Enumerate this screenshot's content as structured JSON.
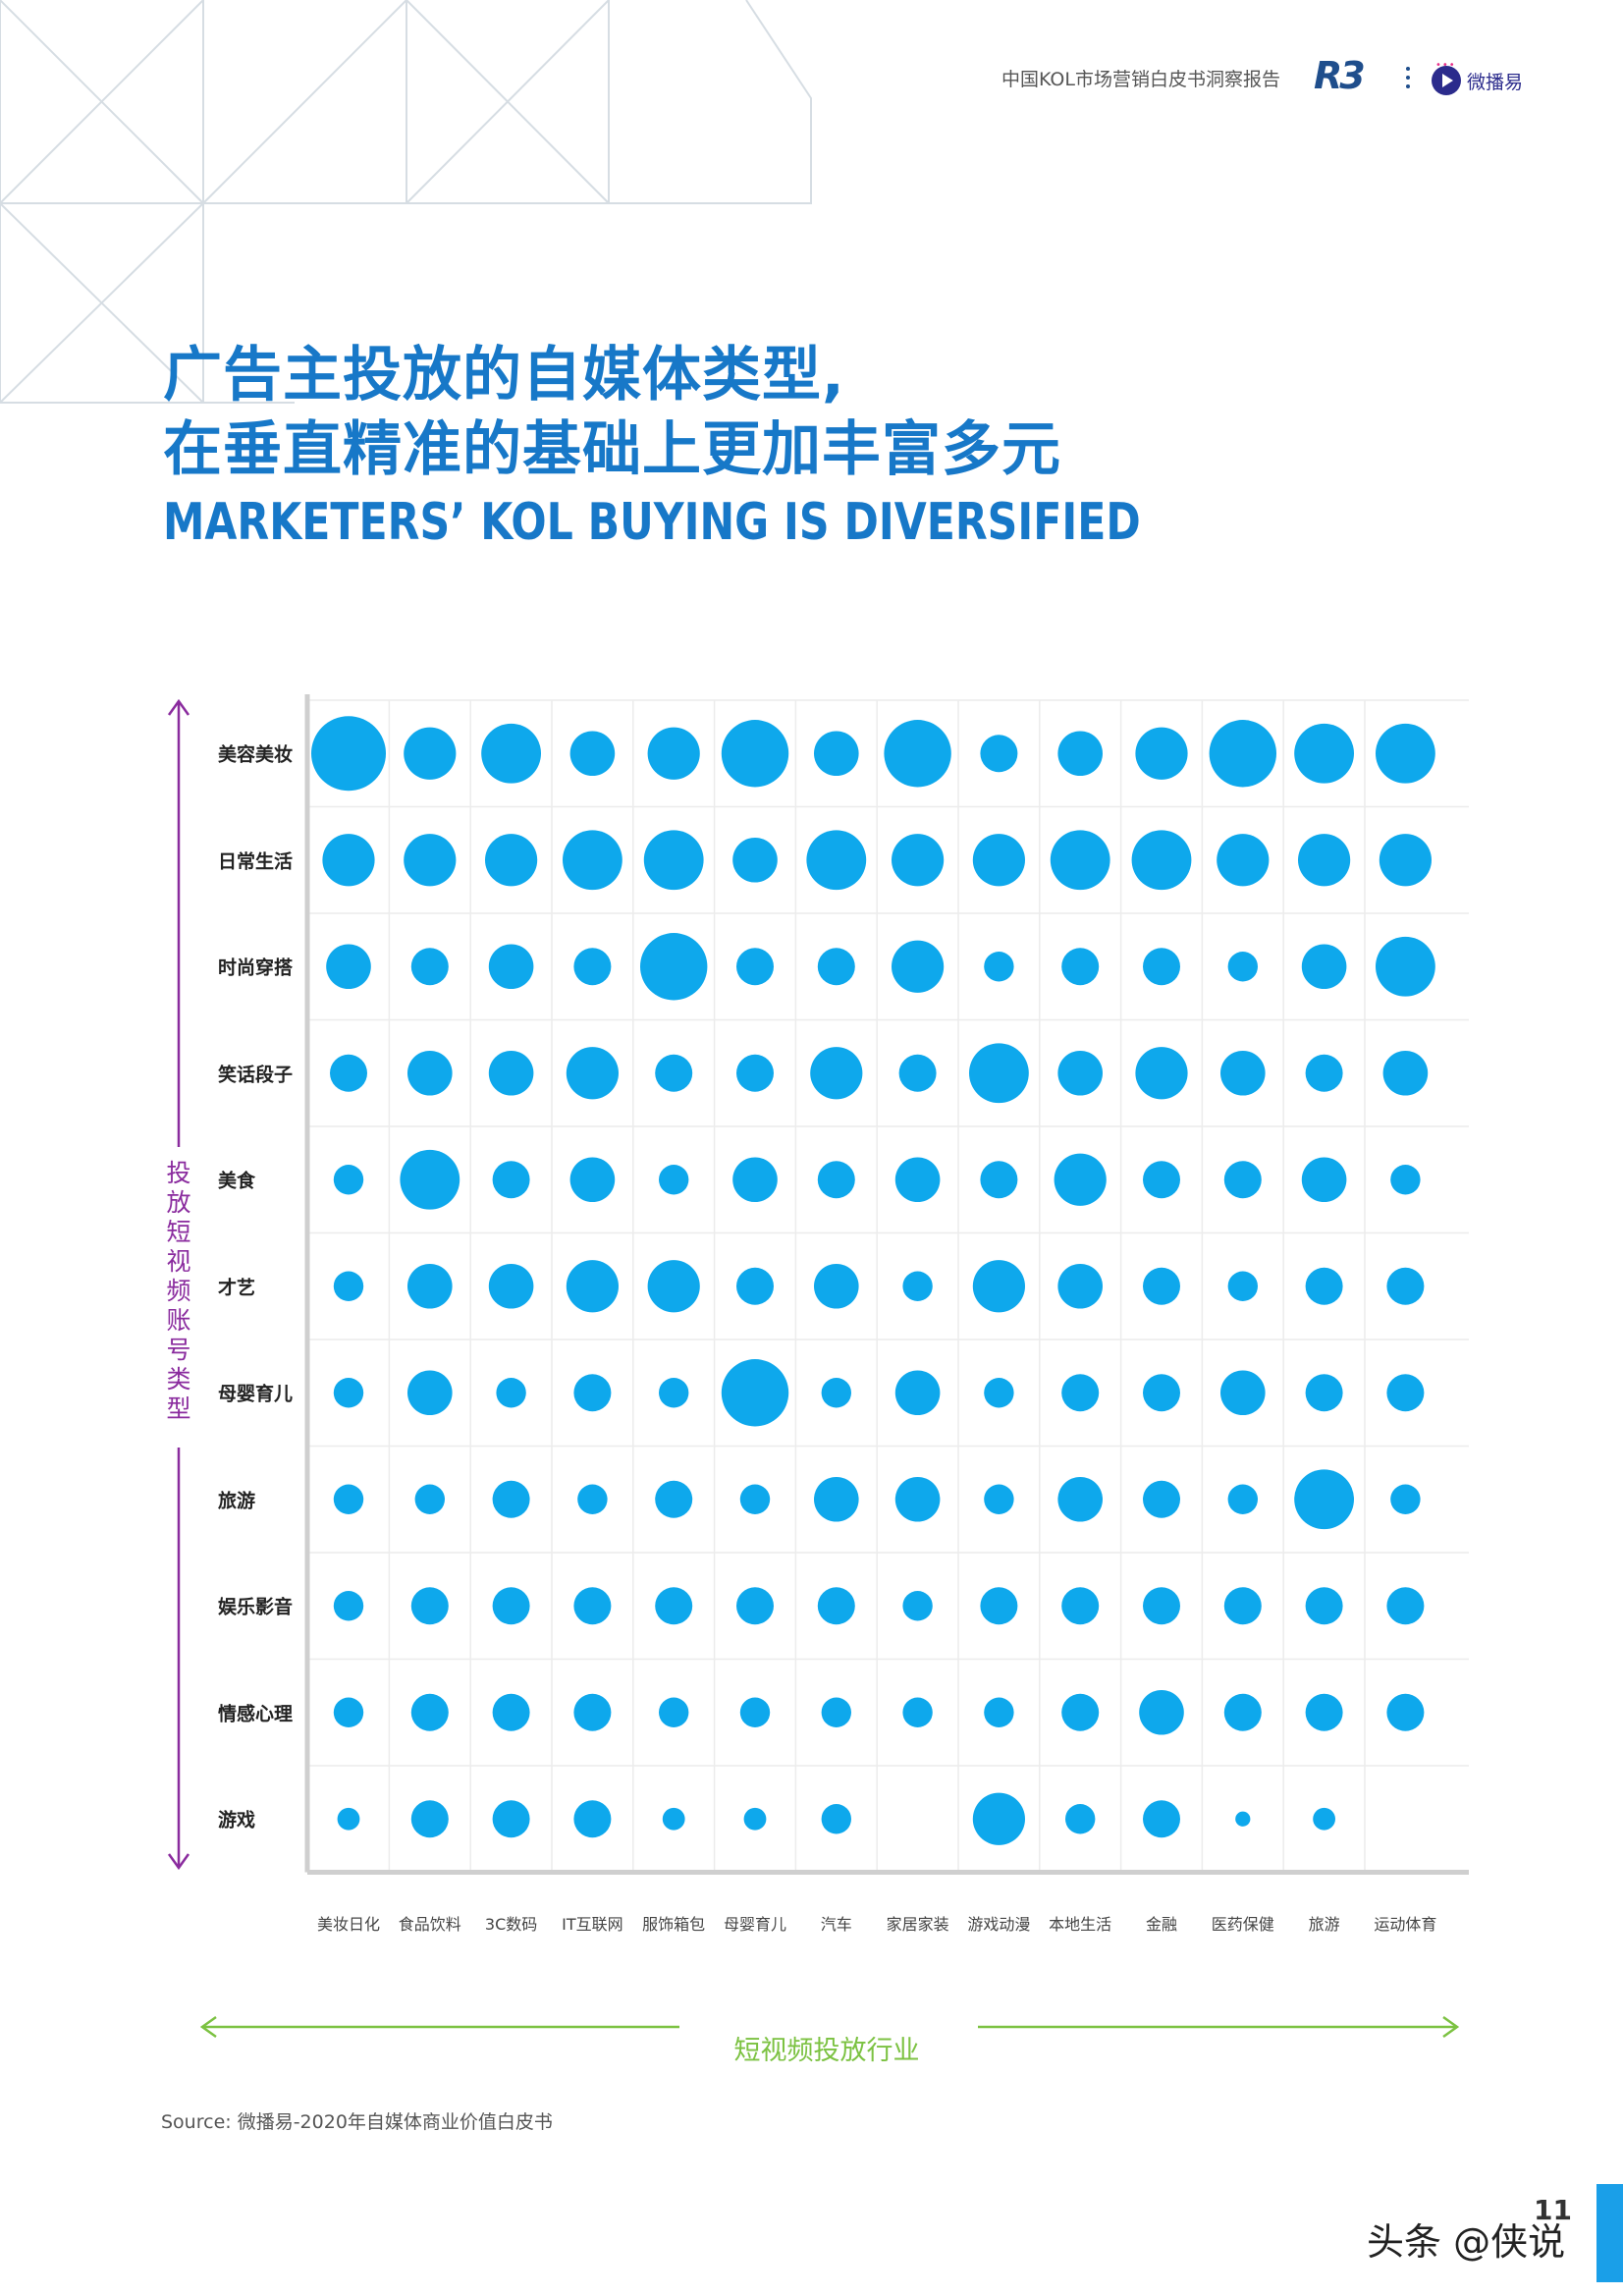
{
  "header": {
    "report_title": "中国KOL市场营销白皮书洞察报告",
    "logo_r3": "R3",
    "logo_weiboyi": "微播易"
  },
  "title": {
    "line1": "广告主投放的自媒体类型,",
    "line2": "在垂直精准的基础上更加丰富多元",
    "english": "MARKETERS’ KOL BUYING IS DIVERSIFIED"
  },
  "colors": {
    "title_blue": "#1778c8",
    "bubble": "#0ea8ec",
    "y_axis": "#8a2b9e",
    "x_axis": "#7cc242",
    "page_tab": "#1a9fe8"
  },
  "chart_data": {
    "type": "bubble-matrix",
    "title": "",
    "ylabel": "投放短视频账号类型",
    "xlabel": "短视频投放行业",
    "rows": [
      "美容美妆",
      "日常生活",
      "时尚穿搭",
      "笑话段子",
      "美食",
      "才艺",
      "母婴育儿",
      "旅游",
      "娱乐影音",
      "情感心理",
      "游戏"
    ],
    "columns": [
      "美妆日化",
      "食品饮料",
      "3C数码",
      "IT互联网",
      "服饰箱包",
      "母婴育儿",
      "汽车",
      "家居家装",
      "游戏动漫",
      "本地生活",
      "金融",
      "医药保健",
      "旅游",
      "运动体育"
    ],
    "size_scale": "relative bubble diameter (1-10)",
    "values": [
      [
        10,
        7,
        8,
        6,
        7,
        9,
        6,
        9,
        5,
        6,
        7,
        9,
        8,
        8
      ],
      [
        7,
        7,
        7,
        8,
        8,
        6,
        8,
        7,
        7,
        8,
        8,
        7,
        7,
        7
      ],
      [
        6,
        5,
        6,
        5,
        9,
        5,
        5,
        7,
        4,
        5,
        5,
        4,
        6,
        8
      ],
      [
        5,
        6,
        6,
        7,
        5,
        5,
        7,
        5,
        8,
        6,
        7,
        6,
        5,
        6
      ],
      [
        4,
        8,
        5,
        6,
        4,
        6,
        5,
        6,
        5,
        7,
        5,
        5,
        6,
        4
      ],
      [
        4,
        6,
        6,
        7,
        7,
        5,
        6,
        4,
        7,
        6,
        5,
        4,
        5,
        5
      ],
      [
        4,
        6,
        4,
        5,
        4,
        9,
        4,
        6,
        4,
        5,
        5,
        6,
        5,
        5
      ],
      [
        4,
        4,
        5,
        4,
        5,
        4,
        6,
        6,
        4,
        6,
        5,
        4,
        8,
        4
      ],
      [
        4,
        5,
        5,
        5,
        5,
        5,
        5,
        4,
        5,
        5,
        5,
        5,
        5,
        5
      ],
      [
        4,
        5,
        5,
        5,
        4,
        4,
        4,
        4,
        4,
        5,
        6,
        5,
        5,
        5
      ],
      [
        3,
        5,
        5,
        5,
        3,
        3,
        4,
        0,
        7,
        4,
        5,
        2,
        3,
        0
      ]
    ]
  },
  "source": "Source: 微播易-2020年自媒体商业价值白皮书",
  "page_number": "11",
  "watermark": "头条 @侠说"
}
